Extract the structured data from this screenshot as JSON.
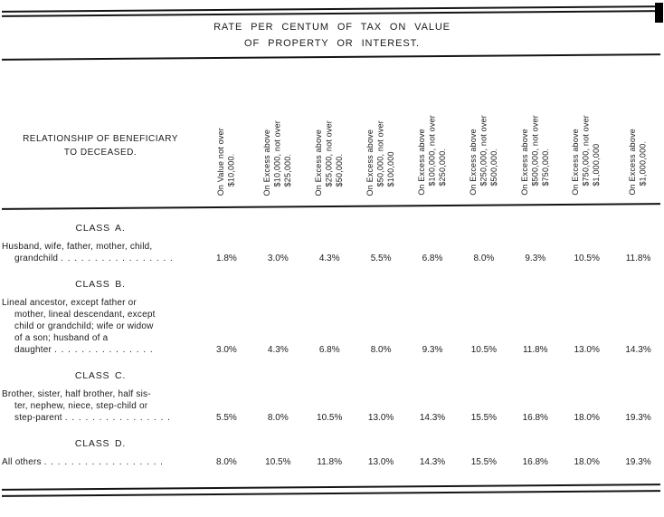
{
  "title": {
    "line1": "RATE PER CENTUM OF TAX ON VALUE",
    "line2": "OF PROPERTY OR INTEREST."
  },
  "header": {
    "relationship_line1": "RELATIONSHIP OF BENEFICIARY",
    "relationship_line2": "TO DECEASED."
  },
  "table": {
    "columns": [
      {
        "lines": [
          "On Value not over",
          "$10,000."
        ]
      },
      {
        "lines": [
          "On Excess above",
          "$10,000, not over",
          "$25,000."
        ]
      },
      {
        "lines": [
          "On Excess above",
          "$25,000, not over",
          "$50,000."
        ]
      },
      {
        "lines": [
          "On Excess above",
          "$50,000, not over",
          "$100,000"
        ]
      },
      {
        "lines": [
          "On Excess above",
          "$100,000, not over",
          "$250,000."
        ]
      },
      {
        "lines": [
          "On Excess above",
          "$250,000, not over",
          "$500,000."
        ]
      },
      {
        "lines": [
          "On Excess above",
          "$500,000, not over",
          "$750,000."
        ]
      },
      {
        "lines": [
          "On Excess above",
          "$750,000, not over",
          "$1,000,000"
        ]
      },
      {
        "lines": [
          "On Excess above",
          "$1,000,000."
        ]
      }
    ],
    "classes": [
      {
        "heading": "CLASS A.",
        "description_lines": [
          "Husband, wife, father, mother, child,",
          "grandchild"
        ],
        "leader": ". . . . . . . . . .  . .  . . . . .",
        "rates": [
          "1.8%",
          "3.0%",
          "4.3%",
          "5.5%",
          "6.8%",
          "8.0%",
          "9.3%",
          "10.5%",
          "11.8%"
        ]
      },
      {
        "heading": "CLASS B.",
        "description_lines": [
          "Lineal ancestor, except father or",
          "mother, lineal descendant, except",
          "child or grandchild; wife or widow",
          "of a son; husband of a",
          "daughter"
        ],
        "leader": ". . .  . .  . . . . . .  . . . .",
        "rates": [
          "3.0%",
          "4.3%",
          "6.8%",
          "8.0%",
          "9.3%",
          "10.5%",
          "11.8%",
          "13.0%",
          "14.3%"
        ]
      },
      {
        "heading": "CLASS C.",
        "description_lines": [
          "Brother, sister, half brother, half sis-",
          "ter, nephew, niece, step-child or",
          "step-parent"
        ],
        "leader": ". . . . . . . . . .  . . . . .  .",
        "rates": [
          "5.5%",
          "8.0%",
          "10.5%",
          "13.0%",
          "14.3%",
          "15.5%",
          "16.8%",
          "18.0%",
          "19.3%"
        ]
      },
      {
        "heading": "CLASS D.",
        "description_lines": [
          "All others"
        ],
        "leader": ". . . .  . .  . . . . . . .  . . . . .",
        "rates": [
          "8.0%",
          "10.5%",
          "11.8%",
          "13.0%",
          "14.3%",
          "15.5%",
          "16.8%",
          "18.0%",
          "19.3%"
        ]
      }
    ]
  }
}
